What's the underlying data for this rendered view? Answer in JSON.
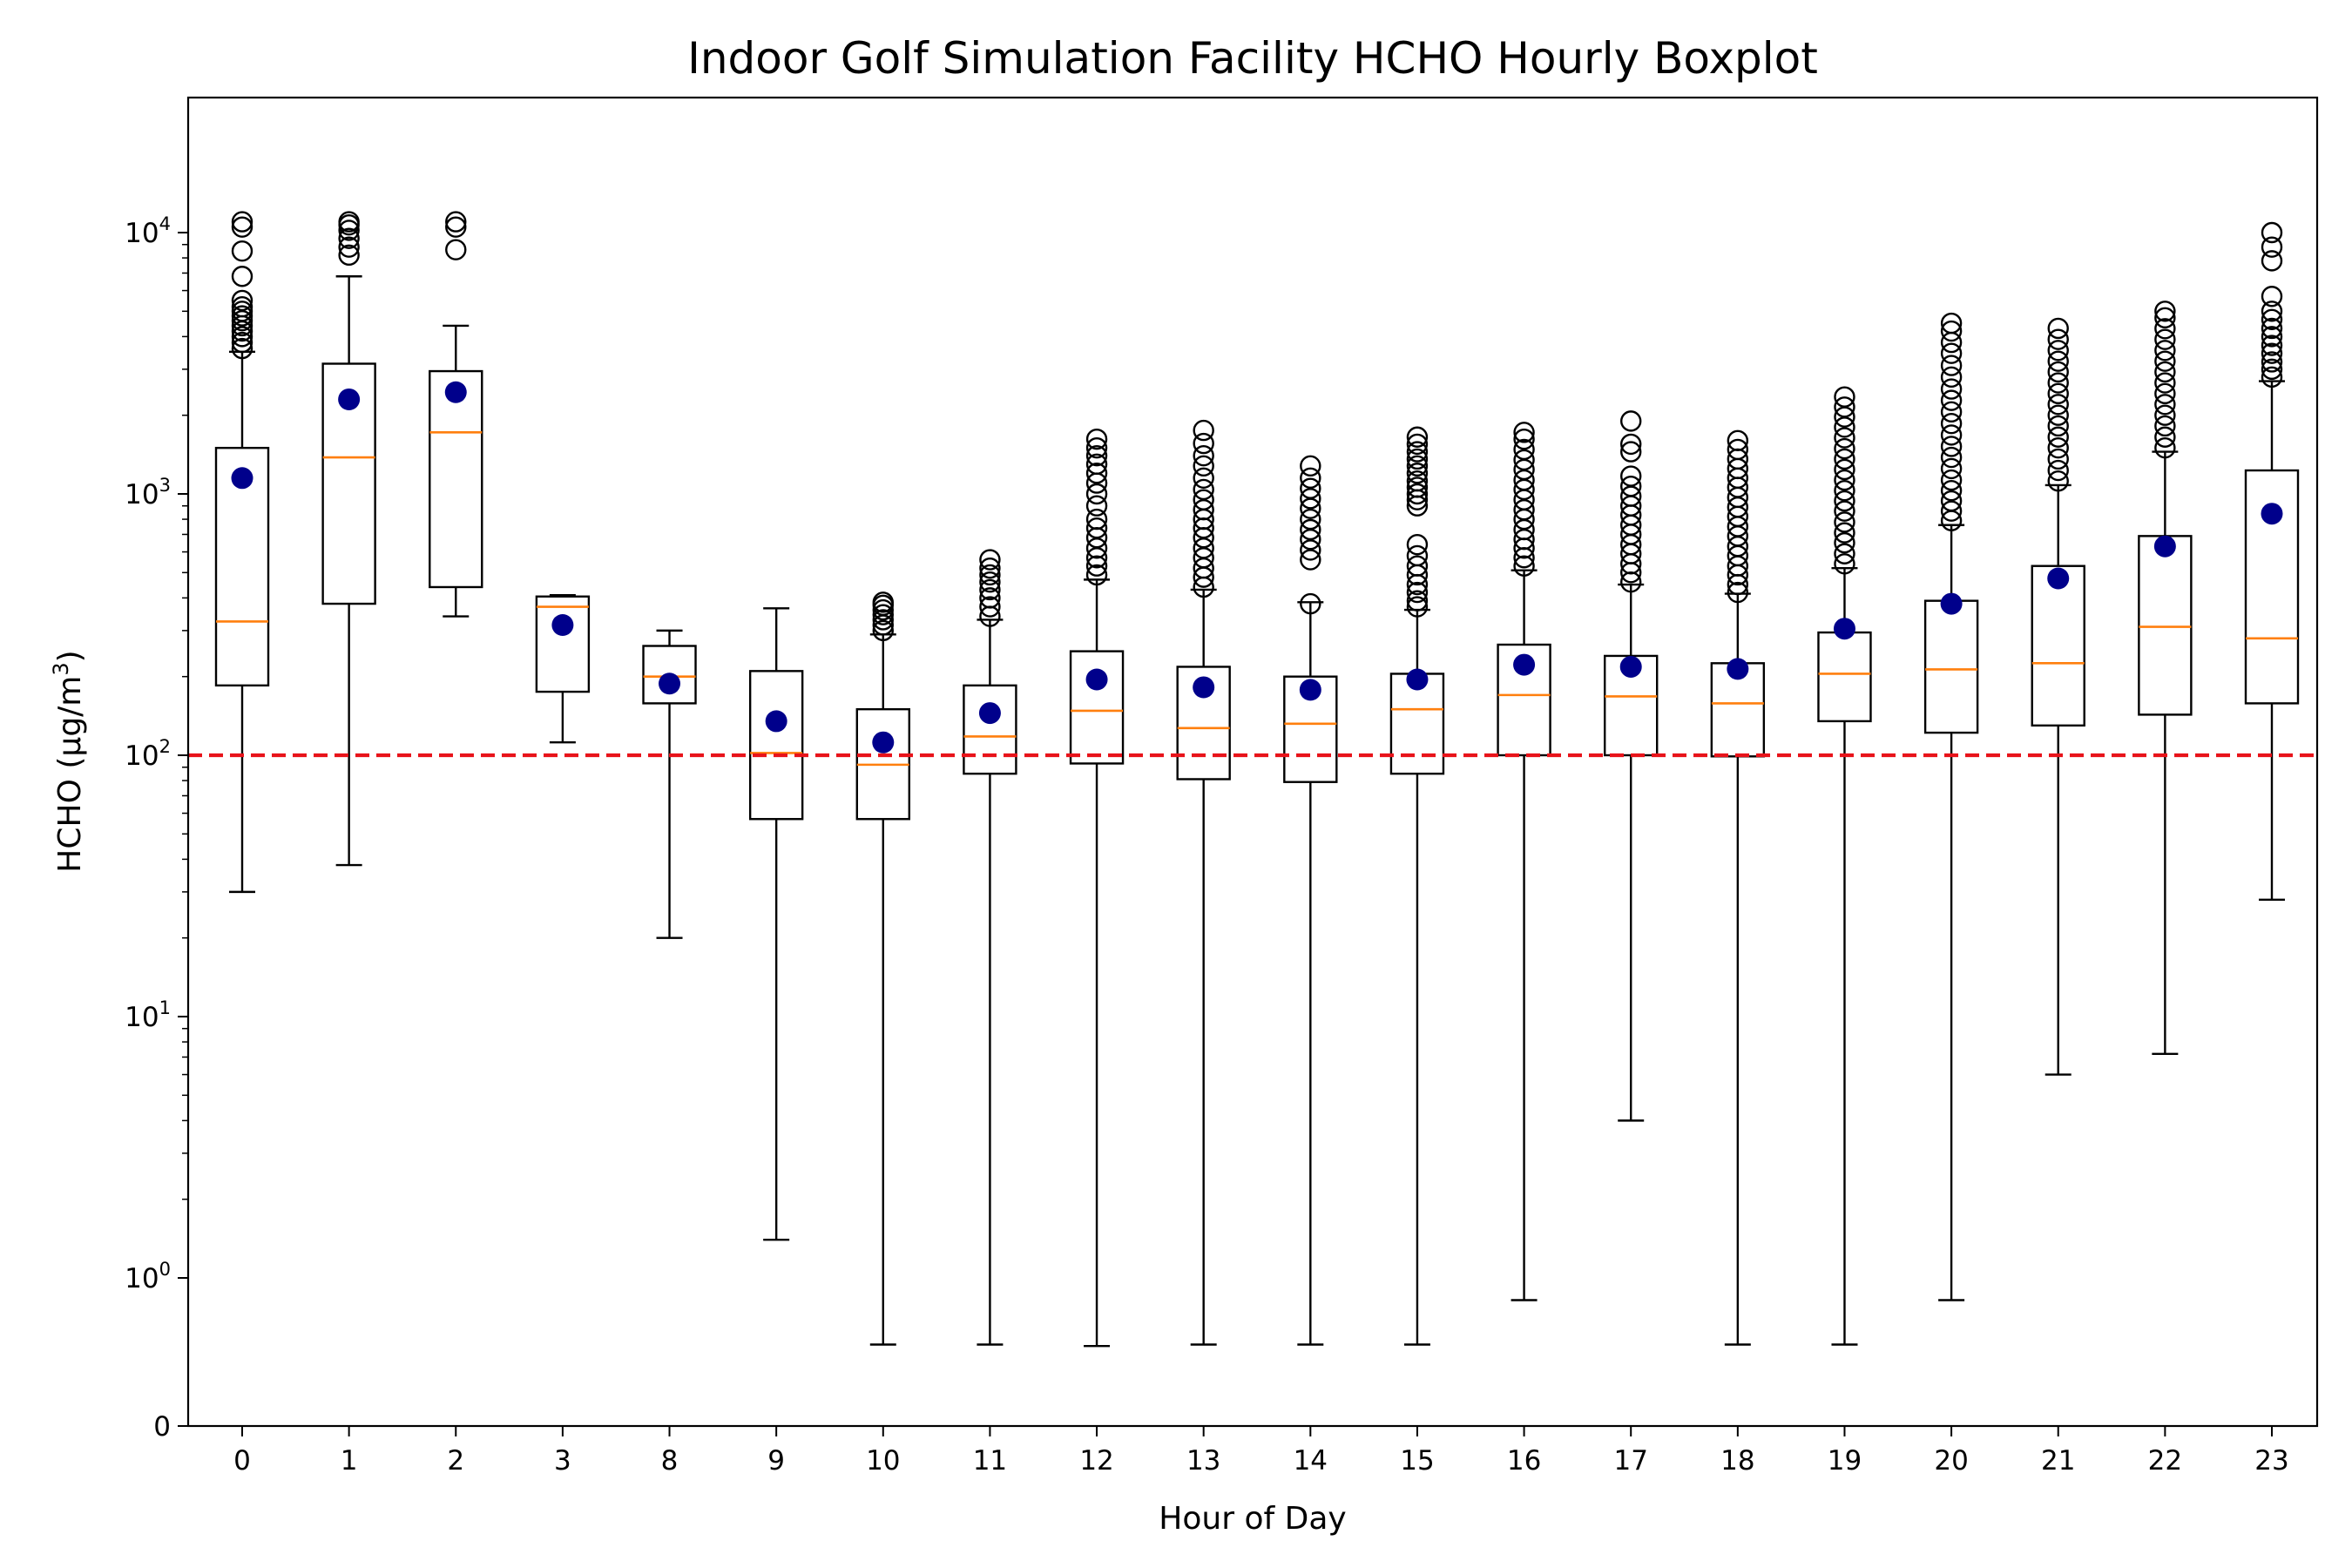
{
  "chart_data": {
    "type": "boxplot",
    "title": "Indoor Golf Simulation Facility HCHO Hourly Boxplot",
    "xlabel": "Hour of Day",
    "ylabel": {
      "base": "HCHO (µg/m",
      "sup": "3",
      "end": ")"
    },
    "yscale": "symlog",
    "yticks": [
      {
        "label": "0",
        "value": 0
      },
      {
        "base": "10",
        "exp": "0",
        "value": 1
      },
      {
        "base": "10",
        "exp": "1",
        "value": 10
      },
      {
        "base": "10",
        "exp": "2",
        "value": 100
      },
      {
        "base": "10",
        "exp": "3",
        "value": 1000
      },
      {
        "base": "10",
        "exp": "4",
        "value": 10000
      }
    ],
    "categories": [
      "0",
      "1",
      "2",
      "3",
      "8",
      "9",
      "10",
      "11",
      "12",
      "13",
      "14",
      "15",
      "16",
      "17",
      "18",
      "19",
      "20",
      "21",
      "22",
      "23"
    ],
    "boxes": [
      {
        "whislo": 30,
        "q1": 185,
        "med": 325,
        "q3": 1500,
        "whishi": 3500,
        "mean": 1150,
        "fliers": [
          3600,
          3800,
          4000,
          4200,
          4400,
          4600,
          4800,
          5000,
          5200,
          5500,
          6800,
          8500,
          10500,
          11000
        ]
      },
      {
        "whislo": 38,
        "q1": 380,
        "med": 1380,
        "q3": 3150,
        "whishi": 6800,
        "mean": 2300,
        "fliers": [
          8200,
          8800,
          9500,
          10200,
          10700,
          11000
        ]
      },
      {
        "whislo": 340,
        "q1": 440,
        "med": 1720,
        "q3": 2950,
        "whishi": 4400,
        "mean": 2450,
        "fliers": [
          8600,
          10500,
          11000
        ]
      },
      {
        "whislo": 112,
        "q1": 175,
        "med": 370,
        "q3": 405,
        "whishi": 410,
        "mean": 315,
        "fliers": []
      },
      {
        "whislo": 20,
        "q1": 158,
        "med": 200,
        "q3": 262,
        "whishi": 300,
        "mean": 188,
        "fliers": []
      },
      {
        "whislo": 1.4,
        "q1": 57,
        "med": 102,
        "q3": 210,
        "whishi": 365,
        "mean": 135,
        "fliers": []
      },
      {
        "whislo": 0.55,
        "q1": 57,
        "med": 92,
        "q3": 150,
        "whishi": 290,
        "mean": 112,
        "fliers": [
          300,
          315,
          330,
          345,
          360,
          375,
          385
        ]
      },
      {
        "whislo": 0.55,
        "q1": 85,
        "med": 118,
        "q3": 185,
        "whishi": 330,
        "mean": 145,
        "fliers": [
          340,
          370,
          400,
          430,
          460,
          490,
          520,
          560
        ]
      },
      {
        "whislo": 0.54,
        "q1": 93,
        "med": 148,
        "q3": 250,
        "whishi": 470,
        "mean": 195,
        "fliers": [
          490,
          530,
          570,
          620,
          680,
          740,
          800,
          900,
          1000,
          1100,
          1200,
          1300,
          1400,
          1500,
          1620
        ]
      },
      {
        "whislo": 0.55,
        "q1": 81,
        "med": 127,
        "q3": 218,
        "whishi": 430,
        "mean": 182,
        "fliers": [
          440,
          480,
          520,
          570,
          620,
          680,
          740,
          800,
          870,
          950,
          1040,
          1150,
          1280,
          1400,
          1560,
          1750
        ]
      },
      {
        "whislo": 0.55,
        "q1": 79,
        "med": 132,
        "q3": 200,
        "whishi": 385,
        "mean": 178,
        "fliers": [
          380,
          560,
          610,
          670,
          730,
          800,
          880,
          960,
          1050,
          1150,
          1280
        ]
      },
      {
        "whislo": 0.55,
        "q1": 85,
        "med": 150,
        "q3": 205,
        "whishi": 360,
        "mean": 195,
        "fliers": [
          370,
          390,
          420,
          450,
          490,
          530,
          580,
          640,
          900,
          950,
          1000,
          1060,
          1120,
          1200,
          1280,
          1360,
          1450,
          1550,
          1650
        ]
      },
      {
        "whislo": 0.85,
        "q1": 100,
        "med": 170,
        "q3": 265,
        "whishi": 510,
        "mean": 222,
        "fliers": [
          530,
          570,
          620,
          670,
          730,
          800,
          870,
          950,
          1040,
          1130,
          1240,
          1350,
          1480,
          1620,
          1720
        ]
      },
      {
        "whislo": 4,
        "q1": 100,
        "med": 168,
        "q3": 240,
        "whishi": 450,
        "mean": 218,
        "fliers": [
          460,
          500,
          540,
          590,
          640,
          700,
          760,
          830,
          900,
          980,
          1070,
          1170,
          1450,
          1550,
          1900
        ]
      },
      {
        "whislo": 0.55,
        "q1": 99,
        "med": 158,
        "q3": 225,
        "whishi": 415,
        "mean": 214,
        "fliers": [
          420,
          450,
          490,
          530,
          580,
          630,
          690,
          750,
          820,
          890,
          970,
          1060,
          1150,
          1250,
          1360,
          1480,
          1600
        ]
      },
      {
        "whislo": 0.55,
        "q1": 135,
        "med": 205,
        "q3": 295,
        "whishi": 520,
        "mean": 305,
        "fliers": [
          540,
          590,
          650,
          710,
          780,
          860,
          940,
          1030,
          1130,
          1240,
          1360,
          1490,
          1640,
          1800,
          1970,
          2150,
          2350
        ]
      },
      {
        "whislo": 0.85,
        "q1": 122,
        "med": 213,
        "q3": 390,
        "whishi": 760,
        "mean": 380,
        "fliers": [
          790,
          860,
          940,
          1030,
          1130,
          1250,
          1380,
          1520,
          1680,
          1860,
          2060,
          2280,
          2520,
          2800,
          3100,
          3450,
          3800,
          4200,
          4500
        ]
      },
      {
        "whislo": 6,
        "q1": 130,
        "med": 225,
        "q3": 530,
        "whishi": 1080,
        "mean": 475,
        "fliers": [
          1120,
          1230,
          1360,
          1500,
          1650,
          1820,
          2000,
          2200,
          2420,
          2660,
          2930,
          3220,
          3540,
          3900,
          4300
        ]
      },
      {
        "whislo": 7.2,
        "q1": 143,
        "med": 310,
        "q3": 690,
        "whishi": 1450,
        "mean": 630,
        "fliers": [
          1500,
          1650,
          1820,
          2000,
          2200,
          2420,
          2660,
          2930,
          3220,
          3540,
          3900,
          4290,
          4720,
          5000
        ]
      },
      {
        "whislo": 28,
        "q1": 158,
        "med": 280,
        "q3": 1230,
        "whishi": 2700,
        "mean": 840,
        "fliers": [
          2800,
          3000,
          3200,
          3450,
          3700,
          4000,
          4300,
          4650,
          5000,
          5700,
          7800,
          8800,
          10000
        ]
      }
    ],
    "reference_line": {
      "value": 100,
      "color": "#e8131a",
      "style": "dashed"
    },
    "colors": {
      "box": "#000000",
      "median": "#ff7f0e",
      "mean": "#00008b",
      "flier": "#000000"
    }
  }
}
